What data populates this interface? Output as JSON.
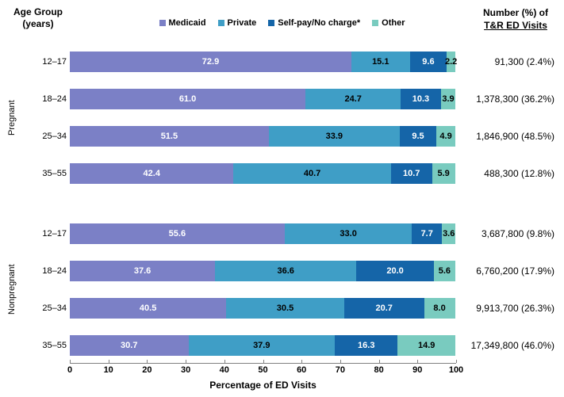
{
  "header": {
    "left_line1": "Age Group",
    "left_line2": "(years)",
    "right_line1": "Number (%) of",
    "right_line2": "T&R ED Visits"
  },
  "legend": [
    {
      "label": "Medicaid",
      "color": "#7B80C6"
    },
    {
      "label": "Private",
      "color": "#3F9EC6"
    },
    {
      "label": "Self-pay/No charge*",
      "color": "#1565A8"
    },
    {
      "label": "Other",
      "color": "#79CBBF"
    }
  ],
  "chart_data": {
    "type": "bar",
    "orientation": "horizontal",
    "stacked": true,
    "title": "",
    "xlabel": "Percentage of ED Visits",
    "xlim": [
      0,
      100
    ],
    "x_ticks": [
      "0",
      "10",
      "20",
      "30",
      "40",
      "50",
      "60",
      "70",
      "80",
      "90",
      "100"
    ],
    "series_names": [
      "Medicaid",
      "Private",
      "Self-pay/No charge*",
      "Other"
    ],
    "colors": {
      "medicaid": "#7B80C6",
      "private": "#3F9EC6",
      "selfpay": "#1565A8",
      "other": "#79CBBF"
    },
    "groups": [
      {
        "name": "Pregnant",
        "rows": [
          {
            "age": "12–17",
            "values": [
              72.9,
              15.1,
              9.6,
              2.2
            ],
            "labels": [
              "72.9",
              "15.1",
              "9.6",
              "2.2"
            ],
            "number": "91,300 (2.4%)"
          },
          {
            "age": "18–24",
            "values": [
              61.0,
              24.7,
              10.3,
              3.9
            ],
            "labels": [
              "61.0",
              "24.7",
              "10.3",
              "3.9"
            ],
            "number": "1,378,300 (36.2%)"
          },
          {
            "age": "25–34",
            "values": [
              51.5,
              33.9,
              9.5,
              4.9
            ],
            "labels": [
              "51.5",
              "33.9",
              "9.5",
              "4.9"
            ],
            "number": "1,846,900 (48.5%)"
          },
          {
            "age": "35–55",
            "values": [
              42.4,
              40.7,
              10.7,
              5.9
            ],
            "labels": [
              "42.4",
              "40.7",
              "10.7",
              "5.9"
            ],
            "number": "488,300 (12.8%)"
          }
        ]
      },
      {
        "name": "Nonpregnant",
        "rows": [
          {
            "age": "12–17",
            "values": [
              55.6,
              33.0,
              7.7,
              3.6
            ],
            "labels": [
              "55.6",
              "33.0",
              "7.7",
              "3.6"
            ],
            "number": "3,687,800 (9.8%)"
          },
          {
            "age": "18–24",
            "values": [
              37.6,
              36.6,
              20.0,
              5.6
            ],
            "labels": [
              "37.6",
              "36.6",
              "20.0",
              "5.6"
            ],
            "number": "6,760,200 (17.9%)"
          },
          {
            "age": "25–34",
            "values": [
              40.5,
              30.5,
              20.7,
              8.0
            ],
            "labels": [
              "40.5",
              "30.5",
              "20.7",
              "8.0"
            ],
            "number": "9,913,700 (26.3%)"
          },
          {
            "age": "35–55",
            "values": [
              30.7,
              37.9,
              16.3,
              14.9
            ],
            "labels": [
              "30.7",
              "37.9",
              "16.3",
              "14.9"
            ],
            "number": "17,349,800 (46.0%)"
          }
        ]
      }
    ]
  }
}
